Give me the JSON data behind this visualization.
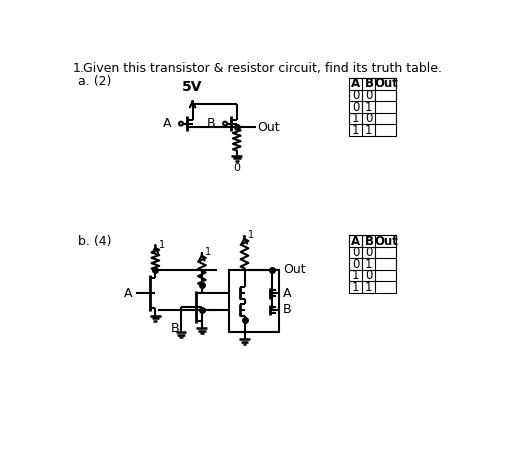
{
  "title_num": "1.",
  "title_text": "Given this transistor & resistor circuit, find its truth table.",
  "part_a_label": "a. (2)",
  "part_b_label": "b. (4)",
  "vcc_label": "5V",
  "out_label": "Out",
  "zero_label": "0",
  "one_label": "1",
  "a_label": "A",
  "b_label": "B",
  "table_a_header": "A",
  "table_b_header": "B",
  "table_out_header": "Out",
  "table_rows_a": [
    [
      "0",
      "0",
      ""
    ],
    [
      "0",
      "1",
      ""
    ],
    [
      "1",
      "0",
      ""
    ],
    [
      "1",
      "1",
      ""
    ]
  ],
  "table_rows_b": [
    [
      "0",
      "0",
      ""
    ],
    [
      "0",
      "1",
      ""
    ],
    [
      "1",
      "0",
      ""
    ],
    [
      "1",
      "1",
      ""
    ]
  ],
  "bg_color": "#ffffff",
  "line_color": "#000000",
  "font_size": 9,
  "title_font_size": 9
}
